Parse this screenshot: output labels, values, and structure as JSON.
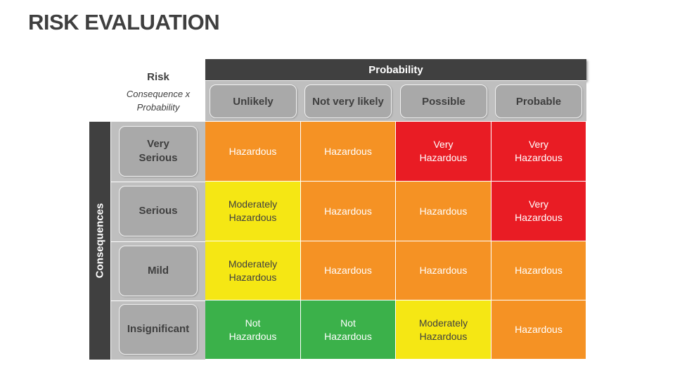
{
  "title": "RISK EVALUATION",
  "risk_label": {
    "title": "Risk",
    "subtitle_line1": "Consequence x",
    "subtitle_line2": "Probability"
  },
  "probability_header": "Probability",
  "consequences_header": "Consequences",
  "columns": [
    "Unlikely",
    "Not very likely",
    "Possible",
    "Probable"
  ],
  "rows": [
    "Very Serious",
    "Serious",
    "Mild",
    "Insignificant"
  ],
  "levels": {
    "not_hazardous": {
      "label": "Not Hazardous",
      "color": "#3bb14a",
      "text_color": "#ffffff"
    },
    "moderately_hazardous": {
      "label": "Moderately Hazardous",
      "color": "#f5e714",
      "text_color": "#404040"
    },
    "hazardous": {
      "label": "Hazardous",
      "color": "#f59224",
      "text_color": "#ffffff"
    },
    "very_hazardous": {
      "label": "Very Hazardous",
      "color": "#e91c24",
      "text_color": "#ffffff"
    }
  },
  "matrix": [
    [
      "Hazardous",
      "Hazardous",
      "Very Hazardous",
      "Very Hazardous"
    ],
    [
      "Moderately Hazardous",
      "Hazardous",
      "Hazardous",
      "Very Hazardous"
    ],
    [
      "Moderately Hazardous",
      "Hazardous",
      "Hazardous",
      "Hazardous"
    ],
    [
      "Not Hazardous",
      "Not Hazardous",
      "Moderately Hazardous",
      "Hazardous"
    ]
  ],
  "colors": {
    "header_dark": "#404040",
    "header_gray": "#bfbfbf",
    "pill_gray": "#a9a9a9",
    "title_text": "#3f3f3f"
  }
}
